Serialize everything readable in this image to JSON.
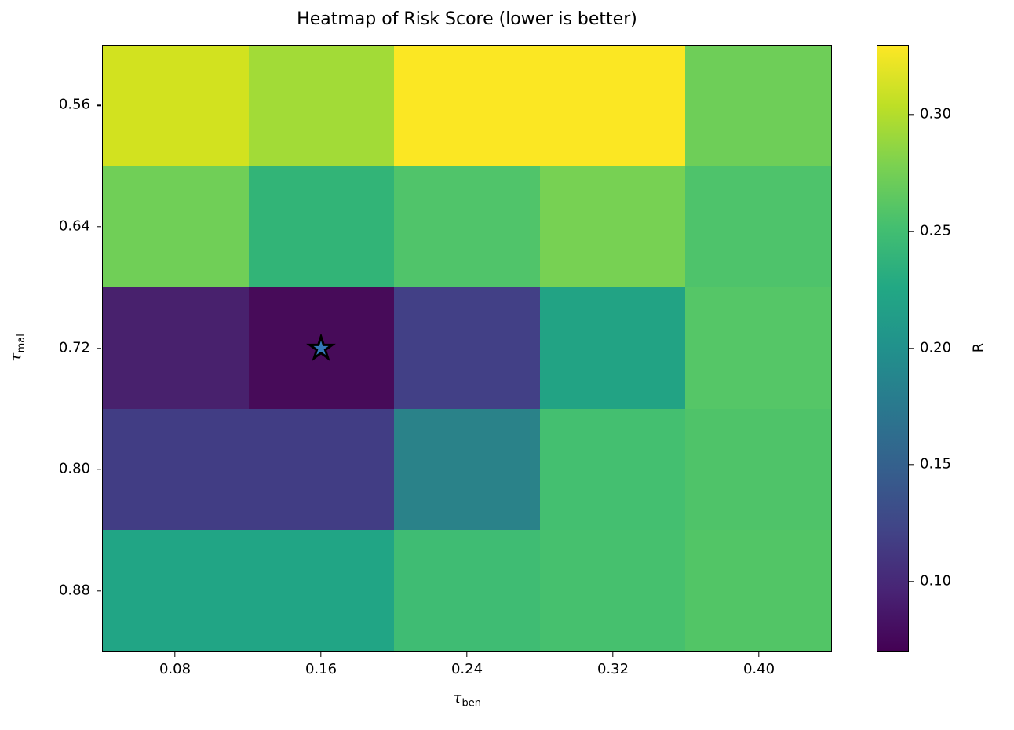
{
  "chart_data": {
    "type": "heatmap",
    "title": "Heatmap of Risk Score (lower is better)",
    "xlabel": {
      "base": "τ",
      "sub": "ben"
    },
    "ylabel": {
      "base": "τ",
      "sub": "mal"
    },
    "x_tick_labels": [
      "0.08",
      "0.16",
      "0.24",
      "0.32",
      "0.40"
    ],
    "y_tick_labels": [
      "0.56",
      "0.64",
      "0.72",
      "0.80",
      "0.88"
    ],
    "x_values": [
      0.08,
      0.16,
      0.24,
      0.32,
      0.4
    ],
    "y_values": [
      0.56,
      0.64,
      0.72,
      0.8,
      0.88
    ],
    "values": [
      [
        0.3,
        0.27,
        0.33,
        0.33,
        0.25
      ],
      [
        0.25,
        0.22,
        0.24,
        0.26,
        0.24
      ],
      [
        0.09,
        0.07,
        0.12,
        0.2,
        0.24
      ],
      [
        0.12,
        0.12,
        0.18,
        0.23,
        0.24
      ],
      [
        0.21,
        0.21,
        0.23,
        0.23,
        0.24
      ]
    ],
    "cell_colors": [
      [
        "#d2e21f",
        "#a2db37",
        "#fbe723",
        "#fbe723",
        "#6ece58"
      ],
      [
        "#70cf57",
        "#32b477",
        "#50c46a",
        "#77d153",
        "#4ec36b"
      ],
      [
        "#48216d",
        "#470b59",
        "#424086",
        "#22a384",
        "#55c667"
      ],
      [
        "#413d84",
        "#413d84",
        "#2a8289",
        "#44bf70",
        "#4fc369"
      ],
      [
        "#21a585",
        "#21a585",
        "#3fbc73",
        "#46c06e",
        "#52c566"
      ]
    ],
    "colormap": "viridis",
    "vmin": 0.07,
    "vmax": 0.33,
    "grid": "off",
    "colorbar": {
      "label": "R",
      "position": "right",
      "tick_labels": [
        "0.30",
        "0.25",
        "0.20",
        "0.15",
        "0.10"
      ],
      "tick_values": [
        0.3,
        0.25,
        0.2,
        0.15,
        0.1
      ],
      "gradient_stops": [
        "#440154",
        "#482475",
        "#414487",
        "#355f8d",
        "#2a788e",
        "#21918c",
        "#22a884",
        "#44bf70",
        "#7ad151",
        "#bddf26",
        "#fde725"
      ]
    },
    "best_point": {
      "x": 0.16,
      "y": 0.72,
      "row": 2,
      "col": 1,
      "marker": "star",
      "fill": "#3579b8",
      "stroke": "#000000"
    }
  }
}
